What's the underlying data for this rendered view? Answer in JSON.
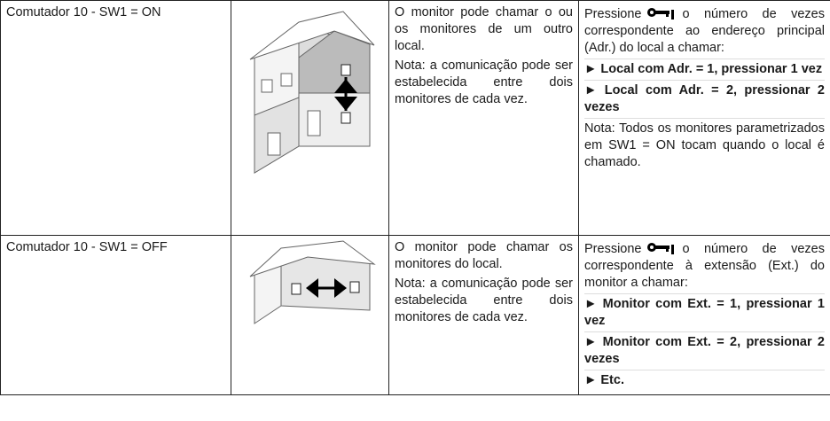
{
  "table": {
    "rows": [
      {
        "switch": "Comutador 10 - SW1 = ON",
        "description": [
          "O monitor pode chamar o ou os monitores de um outro local.",
          "Nota: a comunicação pode ser estabelecida entre dois monitores de cada vez."
        ],
        "instructions": {
          "before_icon": "Pressione",
          "after_icon": "o número de vezes correspondente ao endereço principal (Adr.) do local a chamar:",
          "items": [
            "► Local com Adr. = 1, pressionar 1 vez",
            "► Local com Adr. = 2, pressionar 2 vezes"
          ],
          "note": "Nota: Todos os monitores parametrizados em SW1 = ON tocam quando o local é chamado."
        }
      },
      {
        "switch": "Comutador 10 - SW1 = OFF",
        "description": [
          "O monitor pode chamar os monitores do local.",
          "Nota: a comunicação pode ser estabelecida entre dois monitores de cada vez."
        ],
        "instructions": {
          "before_icon": "Pressione",
          "after_icon": "o número de vezes correspondente à extensão (Ext.) do monitor a chamar:",
          "items": [
            "► Monitor com Ext. = 1, pressionar 1 vez",
            "► Monitor com Ext. = 2, pressionar 2 vezes",
            "► Etc."
          ]
        }
      }
    ]
  }
}
